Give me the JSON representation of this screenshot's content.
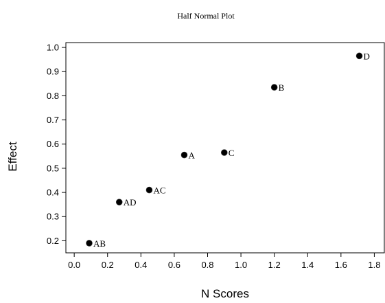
{
  "chart_data": {
    "type": "scatter",
    "title": "Half Normal Plot",
    "xlabel": "N Scores",
    "ylabel": "Effect",
    "xlim": [
      -0.05,
      1.86
    ],
    "ylim": [
      0.15,
      1.02
    ],
    "xticks": [
      0.0,
      0.2,
      0.4,
      0.6,
      0.8,
      1.0,
      1.2,
      1.4,
      1.6,
      1.8
    ],
    "yticks": [
      0.2,
      0.3,
      0.4,
      0.5,
      0.6,
      0.7,
      0.8,
      0.9,
      1.0
    ],
    "xtick_labels": [
      "0.0",
      "0.2",
      "0.4",
      "0.6",
      "0.8",
      "1.0",
      "1.2",
      "1.4",
      "1.6",
      "1.8"
    ],
    "ytick_labels": [
      "0.2",
      "0.3",
      "0.4",
      "0.5",
      "0.6",
      "0.7",
      "0.8",
      "0.9",
      "1.0"
    ],
    "grid": false,
    "points": [
      {
        "label": "AB",
        "x": 0.09,
        "y": 0.19
      },
      {
        "label": "AD",
        "x": 0.27,
        "y": 0.36
      },
      {
        "label": "AC",
        "x": 0.45,
        "y": 0.41
      },
      {
        "label": "A",
        "x": 0.66,
        "y": 0.555
      },
      {
        "label": "C",
        "x": 0.9,
        "y": 0.565
      },
      {
        "label": "B",
        "x": 1.2,
        "y": 0.835
      },
      {
        "label": "D",
        "x": 1.71,
        "y": 0.965
      }
    ],
    "marker_color": "#000000"
  }
}
